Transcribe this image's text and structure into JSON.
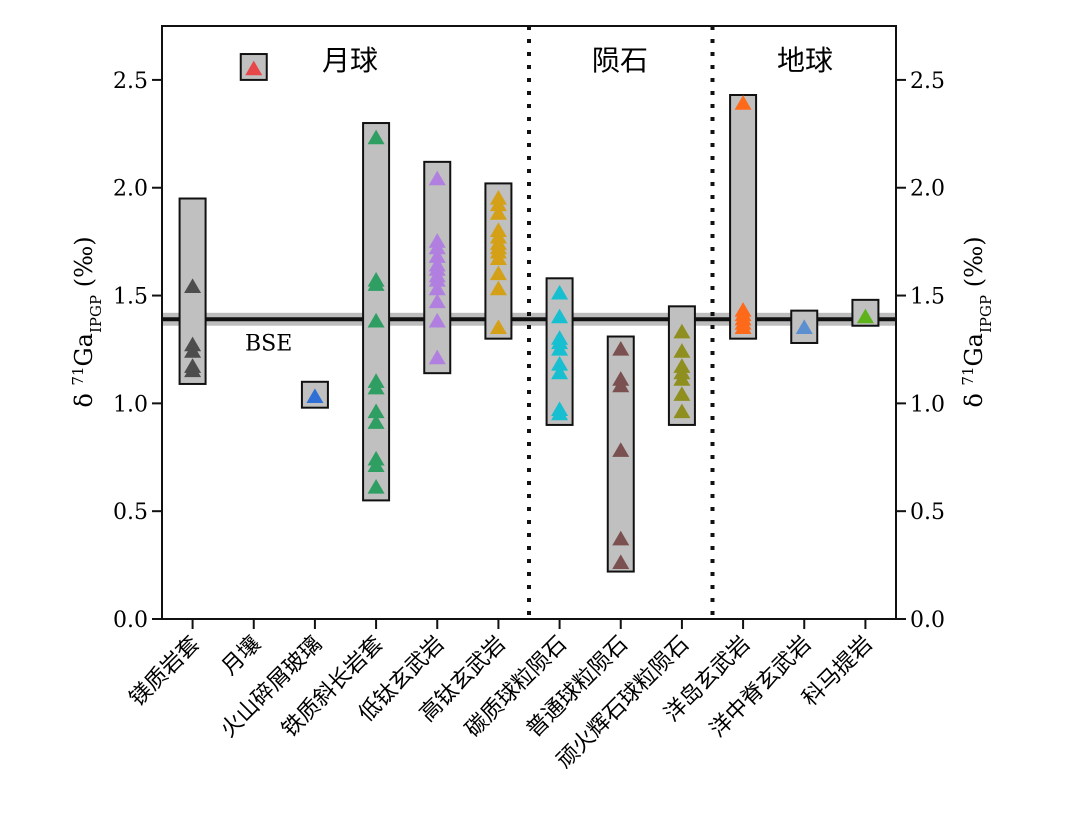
{
  "chart_data": {
    "type": "scatter",
    "y_axis": {
      "title_prefix": "δ ",
      "title_sup": "71",
      "title_main": "Ga",
      "title_sub": "IPGP",
      "title_suffix": " (‰)",
      "ylim": [
        0,
        2.75
      ],
      "ticks": [
        0.0,
        0.5,
        1.0,
        1.5,
        2.0,
        2.5
      ],
      "tick_labels": [
        "0.0",
        "0.5",
        "1.0",
        "1.5",
        "2.0",
        "2.5"
      ]
    },
    "groups": [
      {
        "label": "月球",
        "from": 0,
        "to": 5
      },
      {
        "label": "陨石",
        "from": 6,
        "to": 8
      },
      {
        "label": "地球",
        "from": 9,
        "to": 11
      }
    ],
    "separators_after": [
      5,
      8
    ],
    "bse": {
      "label": "BSE",
      "value": 1.39,
      "band": [
        1.36,
        1.42
      ]
    },
    "categories": [
      {
        "name": "镁质岩套",
        "color": "#4d4d4d",
        "range": [
          1.09,
          1.95
        ],
        "values": [
          1.54,
          1.27,
          1.24,
          1.17,
          1.15
        ]
      },
      {
        "name": "月壤",
        "color": "#e8474a",
        "range": [
          2.5,
          2.62
        ],
        "values": [
          2.55
        ]
      },
      {
        "name": "火山碎屑玻璃",
        "color": "#2f6fd6",
        "range": [
          0.98,
          1.1
        ],
        "values": [
          1.03
        ]
      },
      {
        "name": "铁质斜长岩套",
        "color": "#2e9e62",
        "range": [
          0.55,
          2.3
        ],
        "values": [
          2.23,
          1.57,
          1.55,
          1.38,
          1.1,
          1.07,
          0.96,
          0.91,
          0.74,
          0.71,
          0.61
        ]
      },
      {
        "name": "低钛玄武岩",
        "color": "#b07fe0",
        "range": [
          1.14,
          2.12
        ],
        "values": [
          2.04,
          1.75,
          1.72,
          1.68,
          1.64,
          1.62,
          1.59,
          1.57,
          1.53,
          1.47,
          1.38,
          1.21
        ]
      },
      {
        "name": "高钛玄武岩",
        "color": "#d4a017",
        "range": [
          1.3,
          2.02
        ],
        "values": [
          1.95,
          1.92,
          1.88,
          1.8,
          1.77,
          1.74,
          1.72,
          1.7,
          1.67,
          1.6,
          1.53,
          1.35
        ]
      },
      {
        "name": "碳质球粒陨石",
        "color": "#17bfd0",
        "range": [
          0.9,
          1.58
        ],
        "values": [
          1.51,
          1.4,
          1.3,
          1.28,
          1.25,
          1.18,
          1.14,
          0.97,
          0.95
        ]
      },
      {
        "name": "普通球粒陨石",
        "color": "#7a5050",
        "range": [
          0.22,
          1.31
        ],
        "values": [
          1.25,
          1.11,
          1.08,
          0.78,
          0.37,
          0.26
        ]
      },
      {
        "name": "顽火辉石球粒陨石",
        "color": "#8f8f1f",
        "range": [
          0.9,
          1.45
        ],
        "values": [
          1.33,
          1.24,
          1.17,
          1.14,
          1.11,
          1.04,
          0.96
        ]
      },
      {
        "name": "洋岛玄武岩",
        "color": "#ff6a1a",
        "range": [
          1.3,
          2.43
        ],
        "values": [
          2.39,
          1.43,
          1.41,
          1.39,
          1.37,
          1.35
        ]
      },
      {
        "name": "洋中脊玄武岩",
        "color": "#5b8fd0",
        "range": [
          1.28,
          1.43
        ],
        "values": [
          1.35
        ]
      },
      {
        "name": "科马提岩",
        "color": "#5fb31a",
        "range": [
          1.36,
          1.48
        ],
        "values": [
          1.4
        ]
      }
    ]
  }
}
